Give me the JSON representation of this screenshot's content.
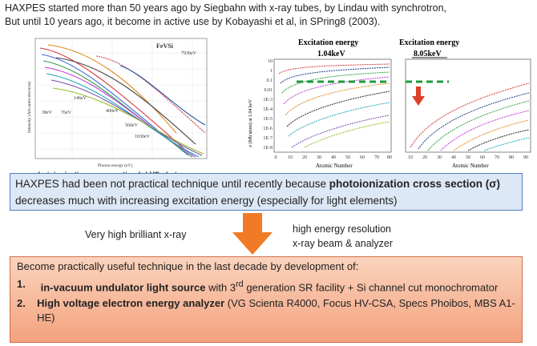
{
  "intro": {
    "line1": "HAXPES started more than 50 years ago by Siegbahn with x-ray tubes, by Lindau with synchrotron,",
    "line2": "But until 10 years ago, it become in active use by Kobayashi et al, in SPring8 (2003)."
  },
  "figure_left": {
    "label_material": "FeVSi",
    "energy_labels": [
      "7936eV",
      "146eV",
      "38eV",
      "76eV",
      "400eV",
      "560eV",
      "1030eV"
    ],
    "xlabel": "Photon energy (eV)",
    "ylabel": "Intensity (Arb.units/electron)",
    "caption": "photoionization cross section (σ) VS photon energy"
  },
  "figure_right": {
    "title1_line1": "Excitation energy",
    "title1_line2": "1.04keV",
    "title2_line1": "Excitation energy",
    "title2_line2": "8.05keV",
    "ylabel": "σ (Mb/atom) at 1.04 keV",
    "xlabel1": "Atomic Number",
    "xlabel2": "Atomic Number",
    "yticks": [
      "10",
      "1",
      "0.1",
      "0.01",
      "1E-3",
      "1E-4",
      "1E-5",
      "1E-6",
      "1E-7",
      "1E-8"
    ],
    "xticks1": [
      "0",
      "10",
      "20",
      "30",
      "40",
      "50",
      "60",
      "70",
      "80"
    ],
    "xticks2": [
      "10",
      "20",
      "30",
      "40",
      "50",
      "60",
      "70",
      "80",
      "90"
    ],
    "accent_green": "#1e9a3c",
    "accent_red": "#e0402a"
  },
  "box1": {
    "text_a": "HAXPES had been not practical technique until recently because ",
    "text_bold": "photoionization cross section (σ)",
    "text_b": " decreases much with increasing excitation energy (especially for light elements)"
  },
  "middle": {
    "left": "Very high brilliant x-ray",
    "right_line1": "high energy resolution",
    "right_line2": "x-ray beam & analyzer",
    "arrow_color": "#f07a26"
  },
  "box2": {
    "title": "Become practically useful technique in the last decade by development of:",
    "item1_num": "1.",
    "item1_bold": "in-vacuum undulator light source",
    "item1_a": " with 3",
    "item1_sup": "rd",
    "item1_b": " generation SR facility + Si channel cut monochromator",
    "item2_num": "2.",
    "item2_bold": "High voltage electron energy analyzer",
    "item2_rest": " (VG Scienta R4000, Focus HV-CSA, Specs Phoibos, MBS A1-HE)"
  }
}
